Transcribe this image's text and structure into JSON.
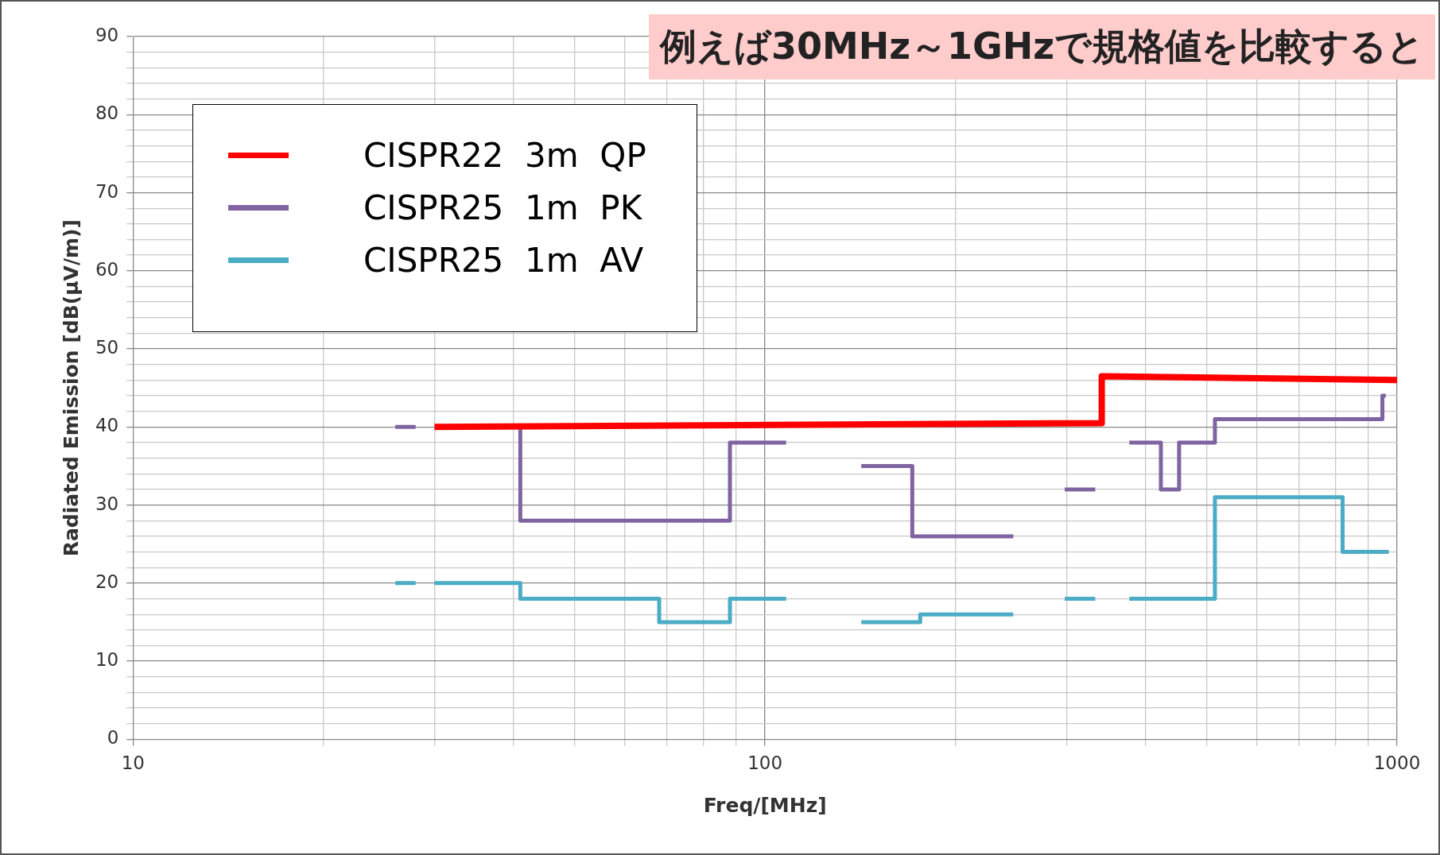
{
  "chart_data": {
    "type": "line",
    "title": "例えば30MHz～1GHzで規格値を比較すると",
    "xlabel": "Freq/[MHz]",
    "ylabel": "Radiated Emission [dB(μV/m)]",
    "log": "x",
    "xlim": [
      10,
      1000
    ],
    "ylim": [
      0,
      90
    ],
    "xticks": [
      10,
      {
        "value": 20,
        "label": null
      },
      {
        "value": 30,
        "label": null
      },
      {
        "value": 40,
        "label": null
      },
      {
        "value": 50,
        "label": null
      },
      {
        "value": 60,
        "label": null
      },
      {
        "value": 70,
        "label": null
      },
      {
        "value": 80,
        "label": null
      },
      {
        "value": 90,
        "label": null
      },
      100,
      {
        "value": 200,
        "label": null
      },
      {
        "value": 300,
        "label": null
      },
      {
        "value": 400,
        "label": null
      },
      {
        "value": 500,
        "label": null
      },
      {
        "value": 600,
        "label": null
      },
      {
        "value": 700,
        "label": null
      },
      {
        "value": 800,
        "label": null
      },
      {
        "value": 900,
        "label": null
      },
      1000
    ],
    "yticks": [
      0,
      {
        "value": 2,
        "label": null
      },
      {
        "value": 4,
        "label": null
      },
      {
        "value": 6,
        "label": null
      },
      {
        "value": 8,
        "label": null
      },
      10,
      {
        "value": 12,
        "label": null
      },
      {
        "value": 14,
        "label": null
      },
      {
        "value": 16,
        "label": null
      },
      {
        "value": 18,
        "label": null
      },
      20,
      {
        "value": 22,
        "label": null
      },
      {
        "value": 24,
        "label": null
      },
      {
        "value": 26,
        "label": null
      },
      {
        "value": 28,
        "label": null
      },
      30,
      {
        "value": 32,
        "label": null
      },
      {
        "value": 34,
        "label": null
      },
      {
        "value": 36,
        "label": null
      },
      {
        "value": 38,
        "label": null
      },
      40,
      {
        "value": 42,
        "label": null
      },
      {
        "value": 44,
        "label": null
      },
      {
        "value": 46,
        "label": null
      },
      {
        "value": 48,
        "label": null
      },
      50,
      {
        "value": 52,
        "label": null
      },
      {
        "value": 54,
        "label": null
      },
      {
        "value": 56,
        "label": null
      },
      {
        "value": 58,
        "label": null
      },
      60,
      {
        "value": 62,
        "label": null
      },
      {
        "value": 64,
        "label": null
      },
      {
        "value": 66,
        "label": null
      },
      {
        "value": 68,
        "label": null
      },
      70,
      {
        "value": 72,
        "label": null
      },
      {
        "value": 74,
        "label": null
      },
      {
        "value": 76,
        "label": null
      },
      {
        "value": 78,
        "label": null
      },
      80,
      {
        "value": 82,
        "label": null
      },
      {
        "value": 84,
        "label": null
      },
      {
        "value": 86,
        "label": null
      },
      {
        "value": 88,
        "label": null
      },
      90
    ],
    "grid": true,
    "legend": "top left",
    "marker": "none",
    "line_style": "solid",
    "series": [
      {
        "name": "CISPR22  3m  QP",
        "color": "#ff0000",
        "x": [
          30,
          341,
          341,
          1000
        ],
        "values": [
          40,
          40.5,
          46.5,
          46
        ]
      },
      {
        "name": "CISPR25  1m  PK",
        "color": "#8064a2",
        "x": [
          26,
          28,
          null,
          41,
          41,
          88,
          88,
          108,
          null,
          142,
          171,
          171,
          247,
          null,
          298,
          333,
          null,
          377,
          423,
          423,
          452,
          452,
          515,
          515,
          948,
          948,
          960
        ],
        "values": [
          40,
          40,
          null,
          40,
          28,
          28,
          38,
          38,
          null,
          35,
          35,
          26,
          26,
          null,
          32,
          32,
          null,
          38,
          38,
          32,
          32,
          38,
          38,
          41,
          41,
          44,
          44
        ]
      },
      {
        "name": "CISPR25  1m  AV",
        "color": "#4bacc6",
        "x": [
          26,
          28,
          null,
          30,
          41,
          41,
          68,
          68,
          88,
          88,
          108,
          null,
          142,
          176,
          176,
          247,
          null,
          298,
          333,
          null,
          377,
          515,
          515,
          820,
          820,
          970
        ],
        "values": [
          20,
          20,
          null,
          20,
          20,
          18,
          18,
          15,
          15,
          18,
          18,
          null,
          15,
          15,
          16,
          16,
          null,
          18,
          18,
          null,
          18,
          18,
          31,
          31,
          24,
          24
        ]
      }
    ]
  }
}
